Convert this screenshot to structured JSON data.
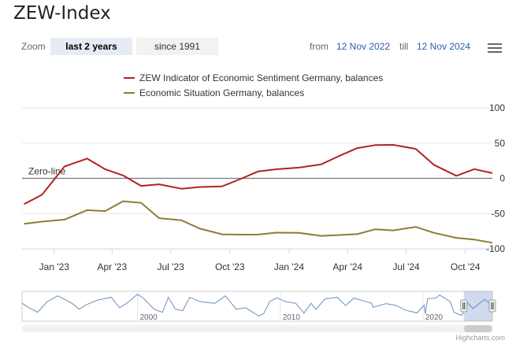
{
  "title": "ZEW-Index",
  "zoom": {
    "label": "Zoom",
    "buttons": [
      {
        "label": "last 2 years",
        "active": true
      },
      {
        "label": "since 1991",
        "active": false
      }
    ]
  },
  "range": {
    "from_label": "from",
    "from_value": "12 Nov 2022",
    "till_label": "till",
    "till_value": "12 Nov 2024"
  },
  "credits": "Highcharts.com",
  "chart_data": {
    "type": "line",
    "legend_position": "top",
    "x_ticks": [
      "Jan '23",
      "Apr '23",
      "Jul '23",
      "Oct '23",
      "Jan '24",
      "Apr '24",
      "Jul '24",
      "Oct '24"
    ],
    "y_ticks": [
      100,
      50,
      0,
      -50,
      -100
    ],
    "ylim": [
      -100,
      100
    ],
    "grid": true,
    "plot_line": {
      "value": 0,
      "label": "Zero-line"
    },
    "series": [
      {
        "name": "ZEW Indicator of Economic Sentiment Germany, balances",
        "color": "#b22222",
        "points": [
          [
            "2022-11-15",
            -36.7
          ],
          [
            "2022-12-13",
            -23.3
          ],
          [
            "2023-01-17",
            16.9
          ],
          [
            "2023-02-21",
            28.1
          ],
          [
            "2023-03-21",
            13.0
          ],
          [
            "2023-04-18",
            4.1
          ],
          [
            "2023-05-16",
            -10.7
          ],
          [
            "2023-06-13",
            -8.5
          ],
          [
            "2023-07-18",
            -14.7
          ],
          [
            "2023-08-15",
            -12.3
          ],
          [
            "2023-09-19",
            -11.4
          ],
          [
            "2023-10-17",
            -1.1
          ],
          [
            "2023-11-14",
            9.8
          ],
          [
            "2023-12-12",
            12.8
          ],
          [
            "2024-01-16",
            15.2
          ],
          [
            "2024-02-20",
            19.9
          ],
          [
            "2024-03-19",
            31.7
          ],
          [
            "2024-04-16",
            42.9
          ],
          [
            "2024-05-14",
            47.1
          ],
          [
            "2024-06-11",
            47.5
          ],
          [
            "2024-07-16",
            41.8
          ],
          [
            "2024-08-13",
            19.2
          ],
          [
            "2024-09-17",
            3.6
          ],
          [
            "2024-10-15",
            13.1
          ],
          [
            "2024-11-12",
            7.4
          ]
        ]
      },
      {
        "name": "Economic Situation Germany, balances",
        "color": "#8b7d3a",
        "points": [
          [
            "2022-11-15",
            -64.5
          ],
          [
            "2022-12-13",
            -61.4
          ],
          [
            "2023-01-17",
            -58.6
          ],
          [
            "2023-02-21",
            -45.1
          ],
          [
            "2023-03-21",
            -46.5
          ],
          [
            "2023-04-18",
            -32.5
          ],
          [
            "2023-05-16",
            -34.8
          ],
          [
            "2023-06-13",
            -56.5
          ],
          [
            "2023-07-18",
            -59.5
          ],
          [
            "2023-08-15",
            -71.3
          ],
          [
            "2023-09-19",
            -79.4
          ],
          [
            "2023-10-17",
            -79.9
          ],
          [
            "2023-11-14",
            -79.8
          ],
          [
            "2023-12-12",
            -77.1
          ],
          [
            "2024-01-16",
            -77.3
          ],
          [
            "2024-02-20",
            -81.7
          ],
          [
            "2024-03-19",
            -80.5
          ],
          [
            "2024-04-16",
            -79.2
          ],
          [
            "2024-05-14",
            -72.3
          ],
          [
            "2024-06-11",
            -73.8
          ],
          [
            "2024-07-16",
            -68.9
          ],
          [
            "2024-08-13",
            -77.3
          ],
          [
            "2024-09-17",
            -84.5
          ],
          [
            "2024-10-15",
            -86.9
          ],
          [
            "2024-11-12",
            -91.4
          ]
        ]
      }
    ],
    "navigator": {
      "x_ticks": [
        "2000",
        "2010",
        "2020"
      ],
      "ylim": [
        -100,
        100
      ],
      "selected_range": [
        "2022-11-12",
        "2024-11-12"
      ],
      "series": [
        {
          "name": "ZEW Indicator of Economic Sentiment Germany, balances",
          "points": [
            [
              "1991-12",
              20
            ],
            [
              "1992-06",
              -10
            ],
            [
              "1993-01",
              -40
            ],
            [
              "1993-09",
              30
            ],
            [
              "1994-06",
              70
            ],
            [
              "1995-06",
              20
            ],
            [
              "1995-12",
              -20
            ],
            [
              "1996-06",
              10
            ],
            [
              "1997-03",
              40
            ],
            [
              "1998-03",
              60
            ],
            [
              "1998-10",
              -10
            ],
            [
              "1999-04",
              20
            ],
            [
              "2000-01",
              80
            ],
            [
              "2000-06",
              55
            ],
            [
              "2001-03",
              -20
            ],
            [
              "2001-10",
              -40
            ],
            [
              "2002-03",
              60
            ],
            [
              "2002-09",
              -20
            ],
            [
              "2003-03",
              -30
            ],
            [
              "2003-09",
              60
            ],
            [
              "2004-06",
              30
            ],
            [
              "2005-06",
              20
            ],
            [
              "2006-03",
              70
            ],
            [
              "2006-12",
              -20
            ],
            [
              "2007-08",
              -10
            ],
            [
              "2008-07",
              -65
            ],
            [
              "2008-11",
              -50
            ],
            [
              "2009-04",
              30
            ],
            [
              "2009-10",
              57
            ],
            [
              "2010-06",
              30
            ],
            [
              "2011-02",
              20
            ],
            [
              "2011-09",
              -45
            ],
            [
              "2012-03",
              20
            ],
            [
              "2012-07",
              -20
            ],
            [
              "2013-03",
              50
            ],
            [
              "2014-01",
              60
            ],
            [
              "2014-08",
              5
            ],
            [
              "2015-03",
              55
            ],
            [
              "2016-06",
              20
            ],
            [
              "2016-07",
              -7
            ],
            [
              "2017-06",
              18
            ],
            [
              "2018-03",
              5
            ],
            [
              "2018-10",
              -25
            ],
            [
              "2019-08",
              -44
            ],
            [
              "2020-02",
              8
            ],
            [
              "2020-03",
              -50
            ],
            [
              "2020-05",
              51
            ],
            [
              "2020-12",
              55
            ],
            [
              "2021-03",
              76
            ],
            [
              "2021-12",
              30
            ],
            [
              "2022-03",
              -39
            ],
            [
              "2022-07",
              -53
            ],
            [
              "2022-10",
              -60
            ],
            [
              "2023-02",
              28
            ],
            [
              "2023-07",
              -15
            ],
            [
              "2024-05",
              47
            ],
            [
              "2024-11",
              7
            ]
          ]
        }
      ]
    }
  }
}
